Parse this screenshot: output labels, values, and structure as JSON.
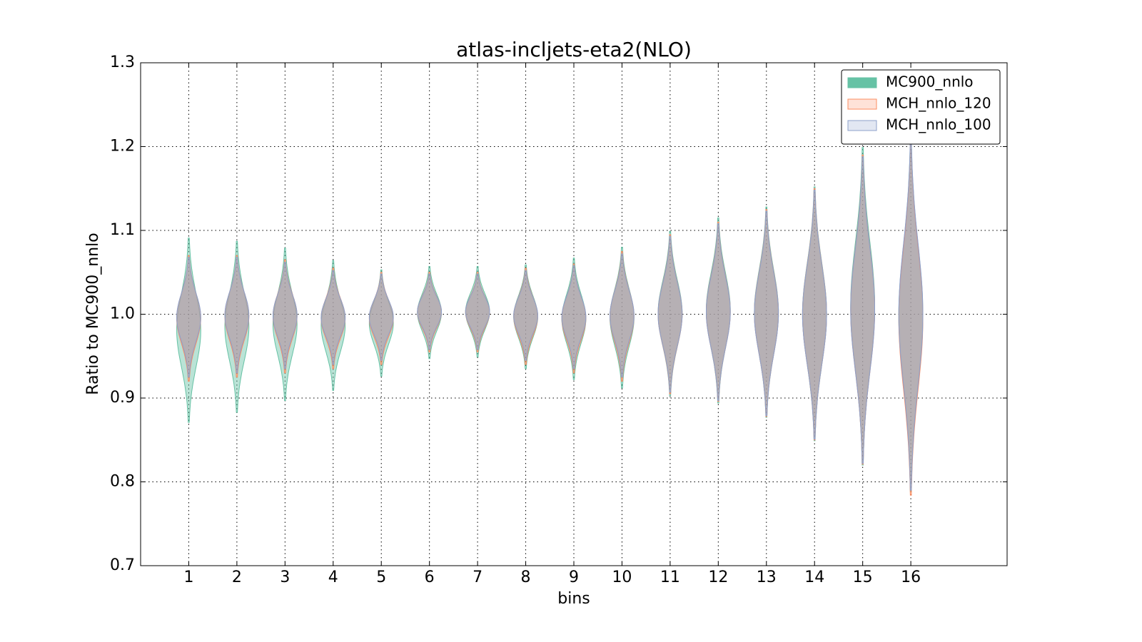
{
  "chart_data": {
    "type": "violin",
    "title": "atlas-incljets-eta2(NLO)",
    "xlabel": "bins",
    "ylabel": "Ratio to MC900_nnlo",
    "xlim": [
      0,
      18
    ],
    "xticks": [
      1,
      2,
      3,
      4,
      5,
      6,
      7,
      8,
      9,
      10,
      11,
      12,
      13,
      14,
      15,
      16
    ],
    "ylim": [
      0.7,
      1.3
    ],
    "yticks": [
      0.7,
      0.8,
      0.9,
      {
        "value": 1,
        "label": "1.0"
      },
      1.1,
      1.2,
      1.3
    ],
    "grid": true,
    "legend": "upper right",
    "violin_width": 0.5,
    "series": [
      {
        "name": "MC900_nnlo",
        "color": "#66c2a5",
        "min": [
          0.871,
          0.883,
          0.897,
          0.909,
          0.926,
          0.947,
          0.949,
          0.935,
          0.922,
          0.912,
          0.903,
          0.894,
          0.877,
          0.849,
          0.82,
          0.788
        ],
        "max": [
          1.091,
          1.087,
          1.079,
          1.064,
          1.053,
          1.057,
          1.057,
          1.059,
          1.067,
          1.08,
          1.099,
          1.115,
          1.128,
          1.152,
          1.199,
          1.209
        ]
      },
      {
        "name": "MCH_nnlo_120",
        "color": "#fc8d62",
        "min": [
          0.92,
          0.925,
          0.93,
          0.935,
          0.94,
          0.955,
          0.955,
          0.94,
          0.93,
          0.92,
          0.905,
          0.896,
          0.878,
          0.85,
          0.821,
          0.784
        ],
        "max": [
          1.07,
          1.07,
          1.065,
          1.055,
          1.05,
          1.05,
          1.05,
          1.055,
          1.06,
          1.075,
          1.095,
          1.11,
          1.125,
          1.15,
          1.19,
          1.205
        ]
      },
      {
        "name": "MCH_nnlo_100",
        "color": "#8da0cb",
        "min": [
          0.925,
          0.93,
          0.935,
          0.94,
          0.945,
          0.958,
          0.958,
          0.945,
          0.935,
          0.925,
          0.907,
          0.897,
          0.879,
          0.851,
          0.822,
          0.79
        ],
        "max": [
          1.068,
          1.068,
          1.062,
          1.052,
          1.048,
          1.048,
          1.048,
          1.052,
          1.058,
          1.072,
          1.093,
          1.108,
          1.123,
          1.148,
          1.188,
          1.21
        ]
      }
    ]
  }
}
